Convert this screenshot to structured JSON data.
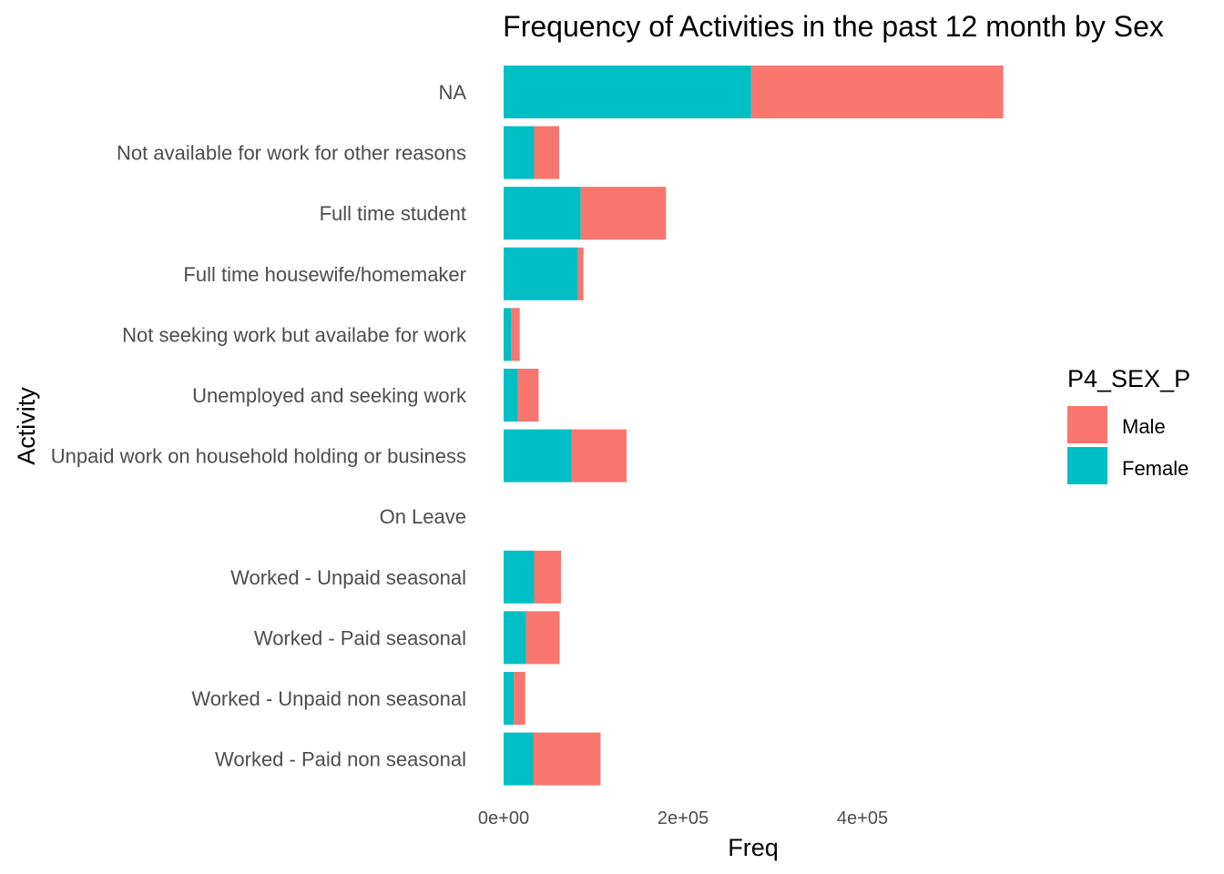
{
  "chart_data": {
    "type": "bar",
    "orientation": "horizontal",
    "stacked": true,
    "title": "Frequency of Activities in the past 12 month by Sex",
    "xlabel": "Freq",
    "ylabel": "Activity",
    "xlim": [
      0,
      560000
    ],
    "x_ticks": [
      0,
      200000,
      400000
    ],
    "x_tick_labels": [
      "0e+00",
      "2e+05",
      "4e+05"
    ],
    "grid": false,
    "legend": {
      "title": "P4_SEX_P",
      "position": "right",
      "entries": [
        {
          "name": "Male",
          "color": "#F8766D"
        },
        {
          "name": "Female",
          "color": "#00BFC4"
        }
      ]
    },
    "categories": [
      "NA",
      "Not available for work for other reasons",
      "Full time student",
      "Full time housewife/homemaker",
      "Not seeking work but availabe for work",
      "Unemployed and seeking work",
      "Unpaid work on household holding or business",
      "On Leave",
      "Worked - Unpaid seasonal",
      "Worked - Paid seasonal",
      "Worked - Unpaid non seasonal",
      "Worked - Paid non seasonal"
    ],
    "series": [
      {
        "name": "Female",
        "color": "#00BFC4",
        "values": [
          276000,
          34000,
          86000,
          83000,
          8500,
          16000,
          76000,
          0,
          34000,
          25000,
          11500,
          33000
        ]
      },
      {
        "name": "Male",
        "color": "#F8766D",
        "values": [
          281000,
          28000,
          95000,
          6000,
          9500,
          23000,
          61000,
          0,
          30000,
          37500,
          12500,
          75000
        ]
      }
    ]
  }
}
